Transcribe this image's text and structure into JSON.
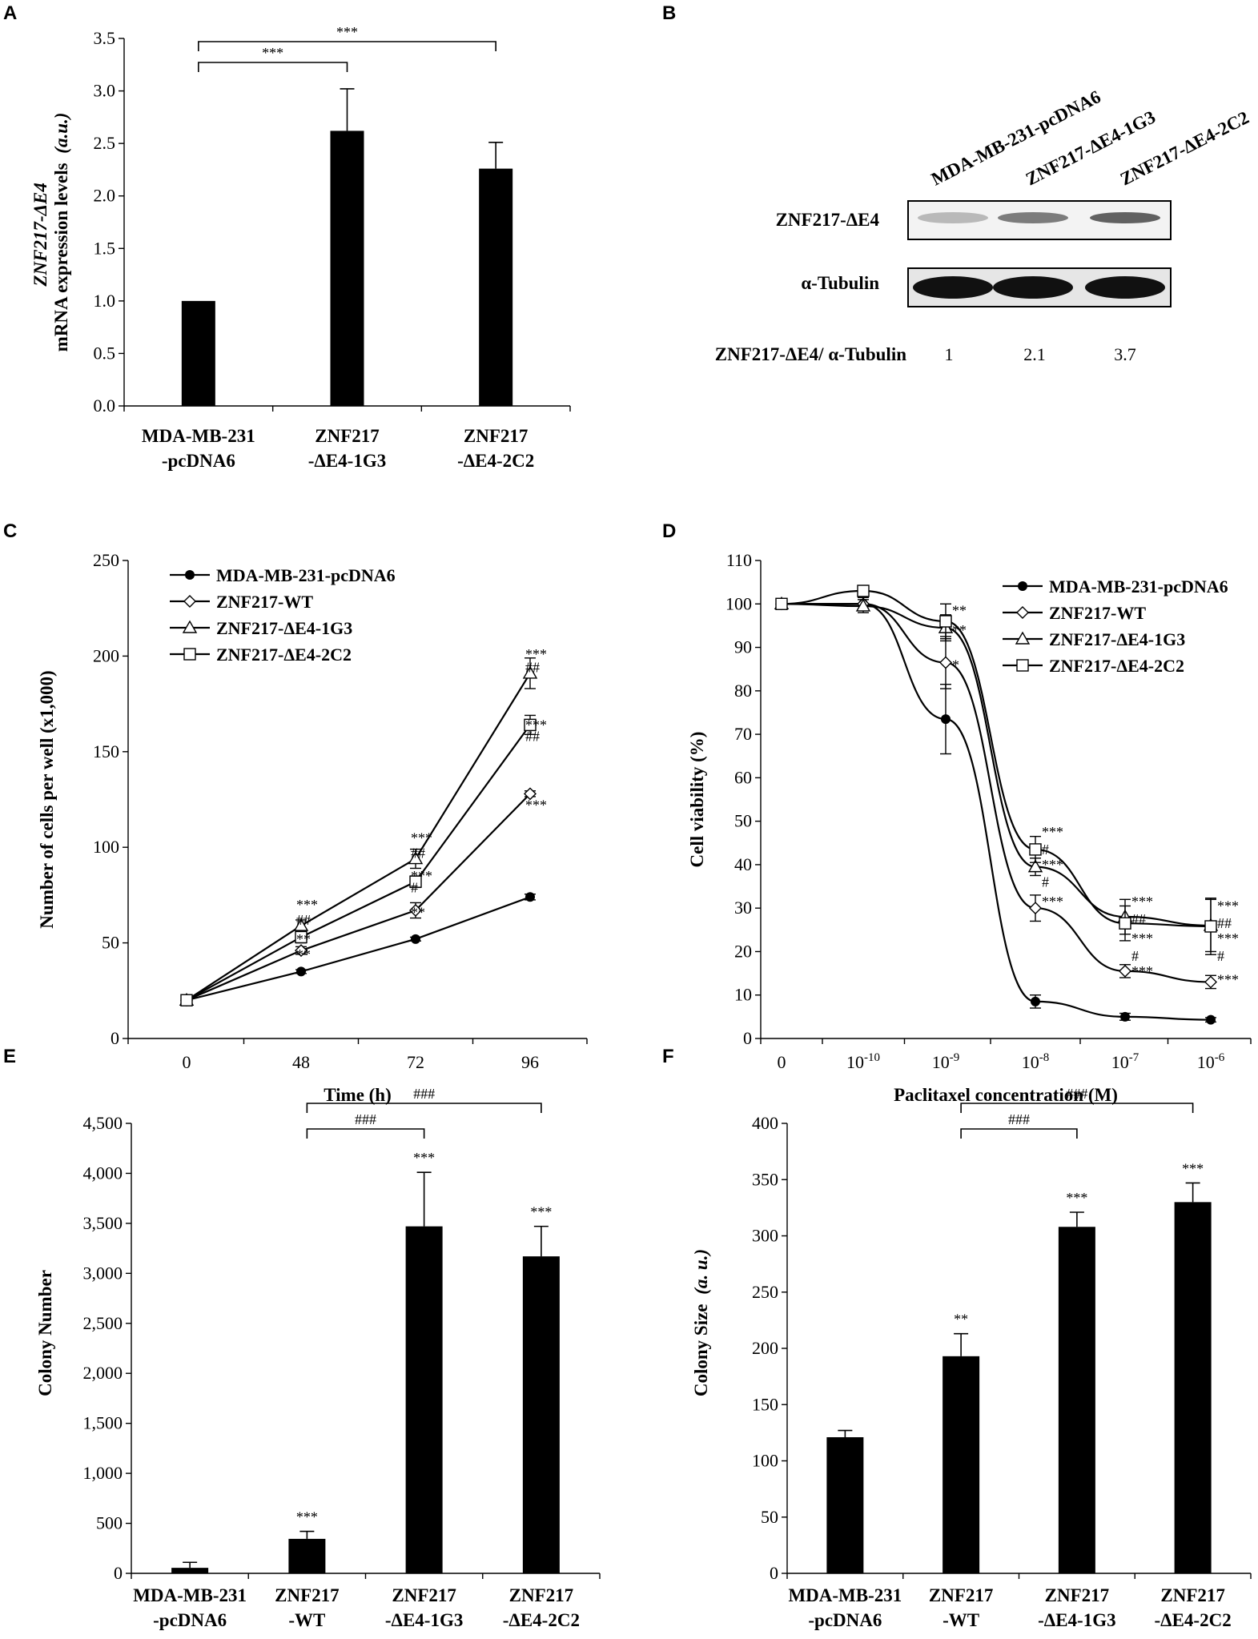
{
  "panels": {
    "A": {
      "letter": "A",
      "chart_data": {
        "type": "bar",
        "categories": [
          [
            "MDA-MB-231",
            "-pcDNA6"
          ],
          [
            "ZNF217",
            "-ΔE4-1G3"
          ],
          [
            "ZNF217",
            "-ΔE4-2C2"
          ]
        ],
        "values": [
          1.0,
          2.62,
          2.26
        ],
        "errors": [
          0.0,
          0.4,
          0.25
        ],
        "ylabel_italic": "ZNF217-ΔE4",
        "ylabel": "mRNA expression levels",
        "ylabel_unit": "(a.u.)",
        "ylim": [
          0,
          3.5
        ],
        "yticks": [
          "0.0",
          "0.5",
          "1.0",
          "1.5",
          "2.0",
          "2.5",
          "3.0",
          "3.5"
        ],
        "brackets": [
          {
            "from": 0,
            "to": 2,
            "label": "***"
          },
          {
            "from": 0,
            "to": 1,
            "label": "***"
          }
        ]
      }
    },
    "B": {
      "letter": "B",
      "lane_labels": [
        "MDA-MB-231-pcDNA6",
        "ZNF217-ΔE4-1G3",
        "ZNF217-ΔE4-2C2"
      ],
      "blot_labels": [
        "ZNF217-ΔE4",
        "α-Tubulin"
      ],
      "ratio_label": "ZNF217-ΔE4/ α-Tubulin",
      "ratios": [
        "1",
        "2.1",
        "3.7"
      ],
      "band_intensity": [
        0.12,
        0.45,
        0.6
      ]
    },
    "C": {
      "letter": "C",
      "chart_data": {
        "type": "line",
        "x": [
          0,
          48,
          72,
          96
        ],
        "xticks": [
          "0",
          "48",
          "72",
          "96"
        ],
        "xlabel": "Time (h)",
        "ylabel": "Number of cells per well (x1,000)",
        "ylim": [
          0,
          250
        ],
        "yticks": [
          "0",
          "50",
          "100",
          "150",
          "200",
          "250"
        ],
        "series": [
          {
            "name": "MDA-MB-231-pcDNA6",
            "marker": "filled-circle",
            "values": [
              20,
              35,
              52,
              74
            ],
            "errors": [
              0,
              1,
              1,
              1.5
            ]
          },
          {
            "name": "ZNF217-WT",
            "marker": "diamond",
            "values": [
              20,
              46,
              67,
              128
            ],
            "errors": [
              0,
              2,
              4,
              1.5
            ]
          },
          {
            "name": "ZNF217-ΔE4-1G3",
            "marker": "triangle",
            "values": [
              20,
              59,
              94,
              191
            ],
            "errors": [
              0,
              3,
              5,
              8
            ]
          },
          {
            "name": "ZNF217-ΔE4-2C2",
            "marker": "square",
            "values": [
              20,
              53,
              82,
              164
            ],
            "errors": [
              0,
              3,
              3,
              5
            ]
          }
        ],
        "annotations": [
          {
            "x": 48,
            "text": "***",
            "y": 70
          },
          {
            "x": 48,
            "text": "##",
            "y": 62
          },
          {
            "x": 48,
            "text": "**",
            "y": 52
          },
          {
            "x": 48,
            "text": "**",
            "y": 44
          },
          {
            "x": 72,
            "text": "***",
            "y": 105
          },
          {
            "x": 72,
            "text": "##",
            "y": 97
          },
          {
            "x": 72,
            "text": "***",
            "y": 85
          },
          {
            "x": 72,
            "text": "#",
            "y": 79
          },
          {
            "x": 72,
            "text": "**",
            "y": 66
          },
          {
            "x": 96,
            "text": "***",
            "y": 201
          },
          {
            "x": 96,
            "text": "##",
            "y": 194
          },
          {
            "x": 96,
            "text": "***",
            "y": 164
          },
          {
            "x": 96,
            "text": "##",
            "y": 158
          },
          {
            "x": 96,
            "text": "***",
            "y": 122
          }
        ]
      }
    },
    "D": {
      "letter": "D",
      "chart_data": {
        "type": "line",
        "x_positions": [
          0,
          1,
          2,
          3,
          4,
          5
        ],
        "xticks": [
          {
            "base": "0",
            "exp": ""
          },
          {
            "base": "10",
            "exp": "-10"
          },
          {
            "base": "10",
            "exp": "-9"
          },
          {
            "base": "10",
            "exp": "-8"
          },
          {
            "base": "10",
            "exp": "-7"
          },
          {
            "base": "10",
            "exp": "-6"
          }
        ],
        "xlabel": "Paclitaxel concentration (M)",
        "ylabel": "Cell viability (%)",
        "ylim": [
          0,
          110
        ],
        "yticks": [
          "0",
          "10",
          "20",
          "30",
          "40",
          "50",
          "60",
          "70",
          "80",
          "90",
          "100",
          "110"
        ],
        "series": [
          {
            "name": "MDA-MB-231-pcDNA6",
            "marker": "filled-circle",
            "values": [
              100,
              100,
              73.5,
              8.5,
              5,
              4.3
            ],
            "errors": [
              0,
              1.5,
              8,
              1.5,
              0.8,
              0.5
            ]
          },
          {
            "name": "ZNF217-WT",
            "marker": "diamond",
            "values": [
              100,
              100,
              86.5,
              30,
              15.5,
              13
            ],
            "errors": [
              0,
              1.5,
              6,
              3,
              1.5,
              1.5
            ]
          },
          {
            "name": "ZNF217-ΔE4-1G3",
            "marker": "triangle",
            "values": [
              100,
              99.5,
              94.5,
              39.5,
              28,
              26
            ],
            "errors": [
              0,
              1.5,
              3,
              2,
              4,
              6
            ]
          },
          {
            "name": "ZNF217-ΔE4-2C2",
            "marker": "square",
            "values": [
              100,
              103,
              96,
              43.5,
              26.5,
              25.8
            ],
            "errors": [
              0,
              1.2,
              4,
              3,
              4,
              6.5
            ]
          }
        ],
        "annotations": [
          {
            "x": 2,
            "text": "**",
            "y": 98.5
          },
          {
            "x": 2,
            "text": "**",
            "y": 94
          },
          {
            "x": 2,
            "text": "*",
            "y": 86
          },
          {
            "x": 3,
            "text": "***",
            "y": 47.5
          },
          {
            "x": 3,
            "text": "#",
            "y": 43.5
          },
          {
            "x": 3,
            "text": "***",
            "y": 40
          },
          {
            "x": 3,
            "text": "#",
            "y": 36
          },
          {
            "x": 3,
            "text": "***",
            "y": 31.5
          },
          {
            "x": 4,
            "text": "***",
            "y": 31.5
          },
          {
            "x": 4,
            "text": "##",
            "y": 27.5
          },
          {
            "x": 4,
            "text": "***",
            "y": 23
          },
          {
            "x": 4,
            "text": "#",
            "y": 19
          },
          {
            "x": 4,
            "text": "***",
            "y": 15.5
          },
          {
            "x": 5,
            "text": "***",
            "y": 30.5
          },
          {
            "x": 5,
            "text": "##",
            "y": 26.5
          },
          {
            "x": 5,
            "text": "***",
            "y": 23
          },
          {
            "x": 5,
            "text": "#",
            "y": 19
          },
          {
            "x": 5,
            "text": "***",
            "y": 13.5
          }
        ]
      }
    },
    "E": {
      "letter": "E",
      "chart_data": {
        "type": "bar",
        "categories": [
          [
            "MDA-MB-231",
            "-pcDNA6"
          ],
          [
            "ZNF217",
            "-WT"
          ],
          [
            "ZNF217",
            "-ΔE4-1G3"
          ],
          [
            "ZNF217",
            "-ΔE4-2C2"
          ]
        ],
        "values": [
          55,
          345,
          3470,
          3170
        ],
        "errors": [
          55,
          75,
          540,
          300
        ],
        "stars": [
          "",
          "***",
          "***",
          "***"
        ],
        "ylabel": "Colony Number",
        "ylim": [
          0,
          4500
        ],
        "yticks": [
          "0",
          "500",
          "1,000",
          "1,500",
          "2,000",
          "2,500",
          "3,000",
          "3,500",
          "4,000",
          "4,500"
        ],
        "brackets": [
          {
            "from": 1,
            "to": 3,
            "label": "###"
          },
          {
            "from": 1,
            "to": 2,
            "label": "###"
          }
        ]
      }
    },
    "F": {
      "letter": "F",
      "chart_data": {
        "type": "bar",
        "categories": [
          [
            "MDA-MB-231",
            "-pcDNA6"
          ],
          [
            "ZNF217",
            "-WT"
          ],
          [
            "ZNF217",
            "-ΔE4-1G3"
          ],
          [
            "ZNF217",
            "-ΔE4-2C2"
          ]
        ],
        "values": [
          121,
          193,
          308,
          330
        ],
        "errors": [
          6,
          20,
          13,
          17
        ],
        "stars": [
          "",
          "**",
          "***",
          "***"
        ],
        "ylabel": "Colony Size",
        "ylabel_unit": "(a. u.)",
        "ylim": [
          0,
          400
        ],
        "yticks": [
          "0",
          "50",
          "100",
          "150",
          "200",
          "250",
          "300",
          "350",
          "400"
        ],
        "brackets": [
          {
            "from": 1,
            "to": 3,
            "label": "###"
          },
          {
            "from": 1,
            "to": 2,
            "label": "###"
          }
        ]
      }
    }
  }
}
